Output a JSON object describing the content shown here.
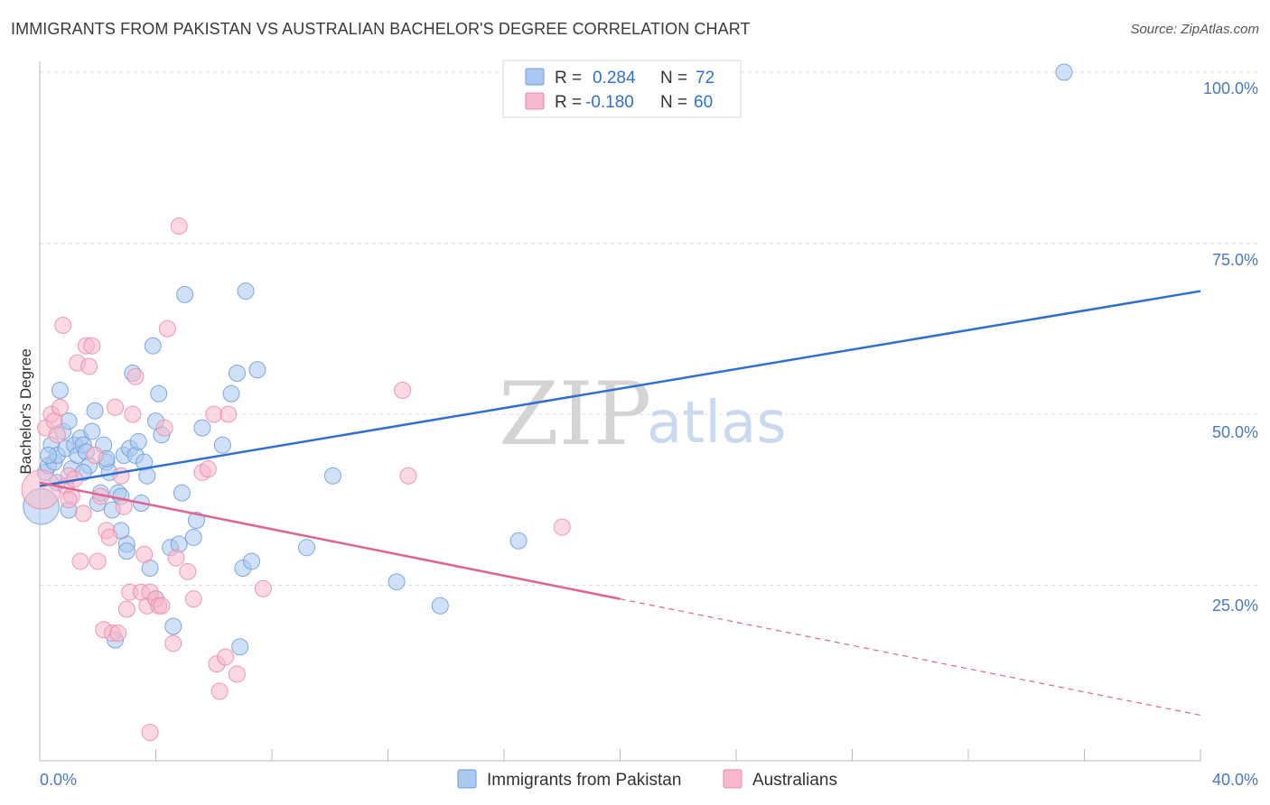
{
  "title": "IMMIGRANTS FROM PAKISTAN VS AUSTRALIAN BACHELOR'S DEGREE CORRELATION CHART",
  "source": "Source: ZipAtlas.com",
  "watermark": {
    "zip": "ZIP",
    "atlas": "atlas"
  },
  "colors": {
    "blue_fill": "#aac8f0",
    "blue_stroke": "#6a9ad8",
    "blue_line": "#2f6fd0",
    "pink_fill": "#f7b8cb",
    "pink_stroke": "#e88aa8",
    "pink_line": "#e0628e",
    "grid": "#dddddd",
    "axis_text": "#4a78c2"
  },
  "legend": {
    "row1": {
      "r_label": "R =",
      "r_value": "0.284",
      "n_label": "N =",
      "n_value": "72"
    },
    "row2": {
      "r_label": "R =",
      "r_value": "-0.180",
      "n_label": "N =",
      "n_value": "60"
    }
  },
  "chart_data": {
    "type": "scatter",
    "title": "IMMIGRANTS FROM PAKISTAN VS AUSTRALIAN BACHELOR'S DEGREE CORRELATION CHART",
    "xlabel": "",
    "ylabel": "Bachelor's Degree",
    "xlim": [
      0,
      40
    ],
    "ylim": [
      0,
      100
    ],
    "x_tick_labels": [
      "0.0%",
      "40.0%"
    ],
    "y_ticks": [
      25,
      50,
      75,
      100
    ],
    "y_tick_labels": [
      "25.0%",
      "50.0%",
      "75.0%",
      "100.0%"
    ],
    "grid": true,
    "legend_position": "bottom-center",
    "series": [
      {
        "name": "Immigrants from Pakistan",
        "color": "#aac8f0",
        "r": 0.284,
        "n": 72,
        "trend": {
          "x0": 0,
          "y0": 39.5,
          "x1": 40,
          "y1": 68.0,
          "dashed_from": null
        },
        "points": [
          [
            0.05,
            36.5,
            2.2
          ],
          [
            0.2,
            41.5,
            1
          ],
          [
            0.3,
            42.5,
            1
          ],
          [
            0.4,
            45.5,
            1
          ],
          [
            0.5,
            43,
            1
          ],
          [
            0.6,
            44,
            1
          ],
          [
            0.7,
            53.5,
            1
          ],
          [
            0.8,
            47.5,
            1
          ],
          [
            0.9,
            45,
            1
          ],
          [
            1.0,
            49,
            1
          ],
          [
            1.1,
            42,
            1
          ],
          [
            1.2,
            45.5,
            1
          ],
          [
            1.3,
            44,
            1
          ],
          [
            1.4,
            46.5,
            1
          ],
          [
            1.5,
            45.5,
            1
          ],
          [
            1.6,
            44.5,
            1
          ],
          [
            1.7,
            42.5,
            1
          ],
          [
            1.8,
            47.5,
            1
          ],
          [
            1.9,
            50.5,
            1
          ],
          [
            2.0,
            37,
            1
          ],
          [
            2.1,
            38.5,
            1
          ],
          [
            2.2,
            45.5,
            1
          ],
          [
            2.3,
            43,
            1
          ],
          [
            2.4,
            41.5,
            1
          ],
          [
            2.5,
            36,
            1
          ],
          [
            2.6,
            17,
            1
          ],
          [
            2.7,
            38.5,
            1
          ],
          [
            2.8,
            38,
            1
          ],
          [
            2.9,
            44,
            1
          ],
          [
            3.0,
            31,
            1
          ],
          [
            3.1,
            45,
            1
          ],
          [
            3.2,
            56,
            1
          ],
          [
            3.3,
            44,
            1
          ],
          [
            3.4,
            46,
            1
          ],
          [
            3.5,
            37,
            1
          ],
          [
            3.6,
            43,
            1
          ],
          [
            3.7,
            41,
            1
          ],
          [
            3.8,
            27.5,
            1
          ],
          [
            3.9,
            60,
            1
          ],
          [
            4.0,
            23,
            1
          ],
          [
            4.1,
            53,
            1
          ],
          [
            4.2,
            47,
            1
          ],
          [
            4.5,
            30.5,
            1
          ],
          [
            4.6,
            19,
            1
          ],
          [
            4.8,
            31,
            1
          ],
          [
            4.9,
            38.5,
            1
          ],
          [
            5.0,
            67.5,
            1
          ],
          [
            5.3,
            32,
            1
          ],
          [
            5.4,
            34.5,
            1
          ],
          [
            5.6,
            48,
            1
          ],
          [
            6.3,
            45.5,
            1
          ],
          [
            6.6,
            53,
            1
          ],
          [
            6.8,
            56,
            1
          ],
          [
            6.9,
            16,
            1
          ],
          [
            7.0,
            27.5,
            1
          ],
          [
            7.1,
            68,
            1
          ],
          [
            7.3,
            28.5,
            1
          ],
          [
            7.5,
            56.5,
            1
          ],
          [
            9.2,
            30.5,
            1
          ],
          [
            10.1,
            41,
            1
          ],
          [
            12.3,
            25.5,
            1
          ],
          [
            13.8,
            22,
            1
          ],
          [
            16.5,
            31.5,
            1
          ],
          [
            35.3,
            100,
            1
          ],
          [
            0.3,
            44,
            1
          ],
          [
            1.0,
            36,
            1
          ],
          [
            2.3,
            43.5,
            1
          ],
          [
            3.0,
            30,
            1
          ],
          [
            1.5,
            41.5,
            1
          ],
          [
            2.8,
            33,
            1
          ],
          [
            4.0,
            49,
            1
          ],
          [
            0.6,
            40,
            1
          ]
        ]
      },
      {
        "name": "Australians",
        "color": "#f7b8cb",
        "r": -0.18,
        "n": 60,
        "trend": {
          "x0": 0,
          "y0": 40.0,
          "x1": 40,
          "y1": 6.0,
          "dashed_from": 20.0
        },
        "points": [
          [
            0.05,
            39,
            2.4
          ],
          [
            0.2,
            48,
            1
          ],
          [
            0.4,
            50,
            1
          ],
          [
            0.5,
            49,
            1
          ],
          [
            0.6,
            47,
            1
          ],
          [
            0.7,
            51,
            1
          ],
          [
            0.8,
            63,
            1
          ],
          [
            0.9,
            39.5,
            1
          ],
          [
            1.0,
            41,
            1
          ],
          [
            1.1,
            38,
            1
          ],
          [
            1.2,
            40.5,
            1
          ],
          [
            1.3,
            57.5,
            1
          ],
          [
            1.4,
            28.5,
            1
          ],
          [
            1.5,
            35.5,
            1
          ],
          [
            1.6,
            60,
            1
          ],
          [
            1.7,
            57,
            1
          ],
          [
            1.8,
            60,
            1
          ],
          [
            1.9,
            44,
            1
          ],
          [
            2.0,
            28.5,
            1
          ],
          [
            2.1,
            38,
            1
          ],
          [
            2.2,
            18.5,
            1
          ],
          [
            2.3,
            33,
            1
          ],
          [
            2.4,
            32,
            1
          ],
          [
            2.5,
            18,
            1
          ],
          [
            2.6,
            51,
            1
          ],
          [
            2.7,
            18,
            1
          ],
          [
            2.8,
            41,
            1
          ],
          [
            2.9,
            36.5,
            1
          ],
          [
            3.0,
            21.5,
            1
          ],
          [
            3.1,
            24,
            1
          ],
          [
            3.2,
            50,
            1
          ],
          [
            3.3,
            55.5,
            1
          ],
          [
            3.5,
            24,
            1
          ],
          [
            3.6,
            29.5,
            1
          ],
          [
            3.7,
            22,
            1
          ],
          [
            3.8,
            24,
            1
          ],
          [
            4.0,
            23,
            1
          ],
          [
            4.1,
            22,
            1
          ],
          [
            4.2,
            22,
            1
          ],
          [
            4.3,
            48,
            1
          ],
          [
            4.4,
            62.5,
            1
          ],
          [
            4.6,
            16.5,
            1
          ],
          [
            4.7,
            29,
            1
          ],
          [
            4.8,
            77.5,
            1
          ],
          [
            5.1,
            27,
            1
          ],
          [
            5.3,
            23,
            1
          ],
          [
            5.6,
            41.5,
            1
          ],
          [
            5.8,
            42,
            1
          ],
          [
            6.0,
            50,
            1
          ],
          [
            6.1,
            13.5,
            1
          ],
          [
            6.2,
            9.5,
            1
          ],
          [
            6.4,
            14.5,
            1
          ],
          [
            6.5,
            50,
            1
          ],
          [
            6.8,
            12,
            1
          ],
          [
            7.7,
            24.5,
            1
          ],
          [
            3.8,
            3.5,
            1
          ],
          [
            12.5,
            53.5,
            1
          ],
          [
            12.7,
            41,
            1
          ],
          [
            18.0,
            33.5,
            1
          ],
          [
            1.0,
            37.5,
            1
          ]
        ]
      }
    ]
  }
}
